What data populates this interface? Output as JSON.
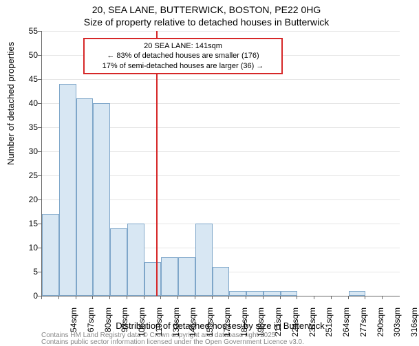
{
  "title_line1": "20, SEA LANE, BUTTERWICK, BOSTON, PE22 0HG",
  "title_line2": "Size of property relative to detached houses in Butterwick",
  "ylabel": "Number of detached properties",
  "xlabel": "Distribution of detached houses by size in Butterwick",
  "footer_line1": "Contains HM Land Registry data © Crown copyright and database right 2025.",
  "footer_line2": "Contains public sector information licensed under the Open Government Licence v3.0.",
  "chart": {
    "type": "histogram",
    "ylim": [
      0,
      55
    ],
    "ytick_step": 5,
    "bar_fill": "#d8e7f3",
    "bar_stroke": "#7ea6c9",
    "grid_color": "#e5e5e5",
    "background_color": "#ffffff",
    "axis_color": "#666666",
    "title_fontsize": 14,
    "label_fontsize": 13,
    "tick_fontsize": 12,
    "annotation_fontsize": 11,
    "x_categories": [
      "54sqm",
      "67sqm",
      "80sqm",
      "93sqm",
      "106sqm",
      "119sqm",
      "133sqm",
      "146sqm",
      "159sqm",
      "172sqm",
      "185sqm",
      "198sqm",
      "211sqm",
      "224sqm",
      "237sqm",
      "251sqm",
      "264sqm",
      "277sqm",
      "290sqm",
      "303sqm",
      "316sqm"
    ],
    "bar_values": [
      17,
      44,
      41,
      40,
      14,
      15,
      7,
      8,
      8,
      15,
      6,
      1,
      1,
      1,
      1,
      0,
      0,
      0,
      1,
      0,
      0
    ],
    "marker": {
      "value_sqm": 141,
      "color": "#d62728",
      "annotation_border": "#d62728",
      "annotation_bg": "#ffffff",
      "lines": [
        "20 SEA LANE: 141sqm",
        "← 83% of detached houses are smaller (176)",
        "17% of semi-detached houses are larger (36) →"
      ]
    }
  }
}
